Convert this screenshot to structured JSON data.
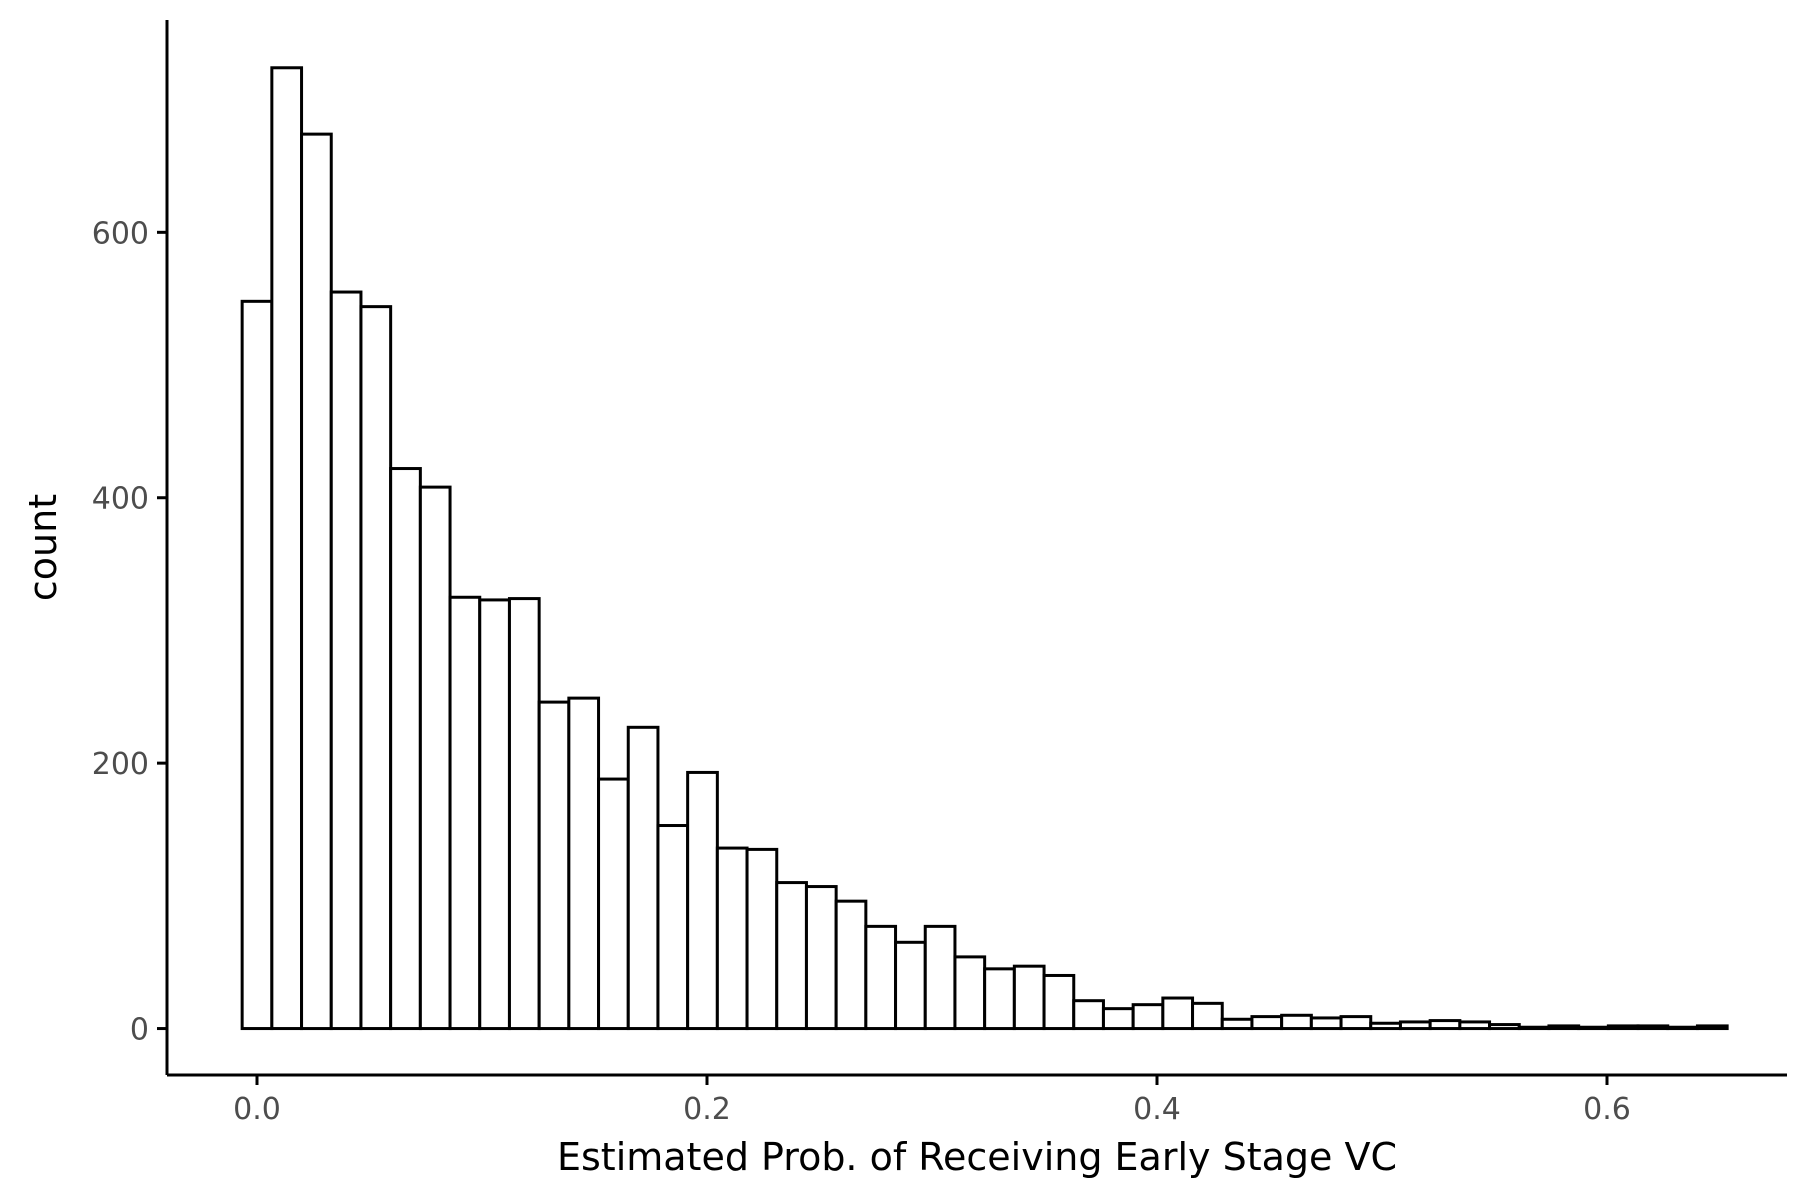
{
  "chart_data": {
    "type": "bar",
    "title": "",
    "xlabel": "Estimated Prob. of Receiving Early Stage VC",
    "ylabel": "count",
    "xlim": [
      -0.04,
      0.68
    ],
    "ylim": [
      -35,
      760
    ],
    "x_ticks": [
      0.0,
      0.2,
      0.4,
      0.6
    ],
    "x_tick_labels": [
      "0.0",
      "0.2",
      "0.4",
      "0.6"
    ],
    "y_ticks": [
      0,
      200,
      400,
      600
    ],
    "y_tick_labels": [
      "0",
      "200",
      "400",
      "600"
    ],
    "bin_start": -0.0066,
    "bin_width": 0.0132,
    "values": [
      548,
      724,
      674,
      555,
      544,
      422,
      408,
      325,
      323,
      324,
      246,
      249,
      188,
      227,
      153,
      193,
      136,
      135,
      110,
      107,
      96,
      77,
      65,
      77,
      54,
      45,
      47,
      40,
      21,
      15,
      18,
      23,
      19,
      7,
      9,
      10,
      8,
      9,
      4,
      5,
      6,
      5,
      3,
      1,
      2,
      1,
      2,
      2,
      1,
      2
    ],
    "grid": false,
    "legend": "none",
    "colors": {
      "bar_fill": "#ffffff",
      "bar_stroke": "#000000",
      "tick_text": "#4d4d4d"
    }
  }
}
